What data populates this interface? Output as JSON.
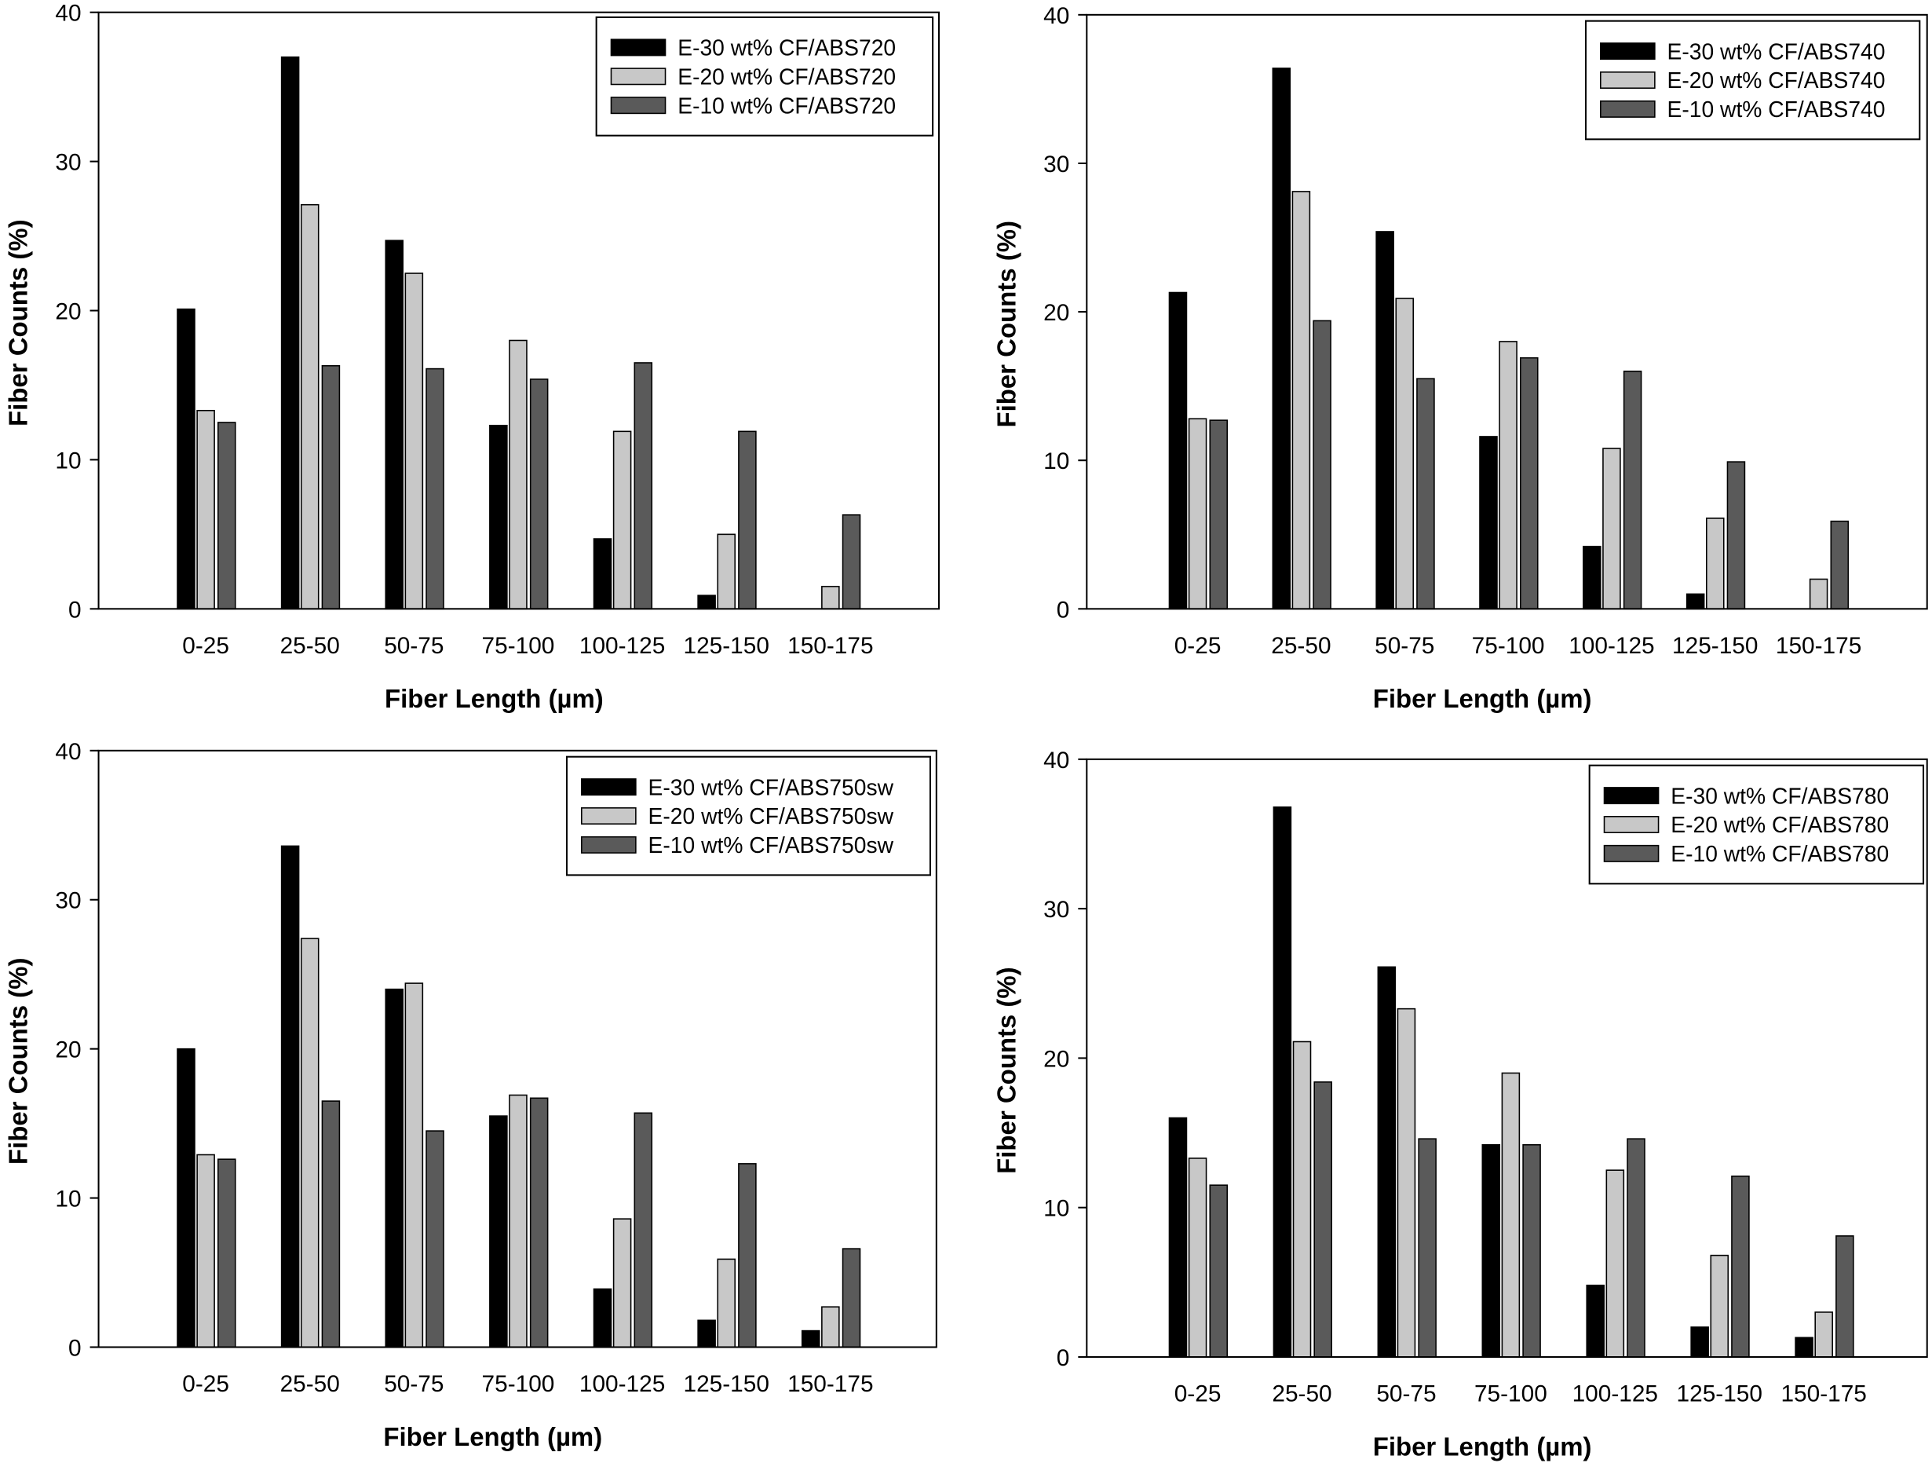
{
  "colors": {
    "E-30": "#000000",
    "E-20": "#c8c8c8",
    "E-10": "#5a5a5a"
  },
  "chart_data": [
    {
      "type": "bar",
      "xlabel": "Fiber Length (µm)",
      "ylabel": "Fiber Counts (%)",
      "ylim": [
        0,
        40
      ],
      "yticks": [
        "0",
        "10",
        "20",
        "30",
        "40"
      ],
      "legend_position": "top-right",
      "categories": [
        "0-25",
        "25-50",
        "50-75",
        "75-100",
        "100-125",
        "125-150",
        "150-175"
      ],
      "series": [
        {
          "name": "E-30 wt% CF/ABS720",
          "key": "E-30",
          "values": [
            20.1,
            37.0,
            24.7,
            12.3,
            4.7,
            0.9,
            0
          ]
        },
        {
          "name": "E-20 wt% CF/ABS720",
          "key": "E-20",
          "values": [
            13.3,
            27.1,
            22.5,
            18.0,
            11.9,
            5.0,
            1.5
          ]
        },
        {
          "name": "E-10 wt% CF/ABS720",
          "key": "E-10",
          "values": [
            12.5,
            16.3,
            16.1,
            15.4,
            16.5,
            11.9,
            6.3
          ]
        }
      ]
    },
    {
      "type": "bar",
      "xlabel": "Fiber Length (µm)",
      "ylabel": "Fiber Counts (%)",
      "ylim": [
        0,
        40
      ],
      "yticks": [
        "0",
        "10",
        "20",
        "30",
        "40"
      ],
      "legend_position": "top-right",
      "categories": [
        "0-25",
        "25-50",
        "50-75",
        "75-100",
        "100-125",
        "125-150",
        "150-175"
      ],
      "series": [
        {
          "name": "E-30 wt% CF/ABS740",
          "key": "E-30",
          "values": [
            21.3,
            36.4,
            25.4,
            11.6,
            4.2,
            1.0,
            0
          ]
        },
        {
          "name": "E-20 wt% CF/ABS740",
          "key": "E-20",
          "values": [
            12.8,
            28.1,
            20.9,
            18.0,
            10.8,
            6.1,
            2.0
          ]
        },
        {
          "name": "E-10 wt% CF/ABS740",
          "key": "E-10",
          "values": [
            12.7,
            19.4,
            15.5,
            16.9,
            16.0,
            9.9,
            5.9
          ]
        }
      ]
    },
    {
      "type": "bar",
      "xlabel": "Fiber Length (µm)",
      "ylabel": "Fiber Counts (%)",
      "ylim": [
        0,
        40
      ],
      "yticks": [
        "0",
        "10",
        "20",
        "30",
        "40"
      ],
      "legend_position": "top-right",
      "categories": [
        "0-25",
        "25-50",
        "50-75",
        "75-100",
        "100-125",
        "125-150",
        "150-175"
      ],
      "series": [
        {
          "name": "E-30 wt% CF/ABS750sw",
          "key": "E-30",
          "values": [
            20.0,
            33.6,
            24.0,
            15.5,
            3.9,
            1.8,
            1.1
          ]
        },
        {
          "name": "E-20 wt% CF/ABS750sw",
          "key": "E-20",
          "values": [
            12.9,
            27.4,
            24.4,
            16.9,
            8.6,
            5.9,
            2.7
          ]
        },
        {
          "name": "E-10 wt% CF/ABS750sw",
          "key": "E-10",
          "values": [
            12.6,
            16.5,
            14.5,
            16.7,
            15.7,
            12.3,
            6.6
          ]
        }
      ]
    },
    {
      "type": "bar",
      "xlabel": "Fiber Length (µm)",
      "ylabel": "Fiber Counts (%)",
      "ylim": [
        0,
        40
      ],
      "yticks": [
        "0",
        "10",
        "20",
        "30",
        "40"
      ],
      "legend_position": "top-right",
      "categories": [
        "0-25",
        "25-50",
        "50-75",
        "75-100",
        "100-125",
        "125-150",
        "150-175"
      ],
      "series": [
        {
          "name": "E-30 wt% CF/ABS780",
          "key": "E-30",
          "values": [
            16.0,
            36.8,
            26.1,
            14.2,
            4.8,
            2.0,
            1.3
          ]
        },
        {
          "name": "E-20 wt% CF/ABS780",
          "key": "E-20",
          "values": [
            13.3,
            21.1,
            23.3,
            19.0,
            12.5,
            6.8,
            3.0
          ]
        },
        {
          "name": "E-10 wt% CF/ABS780",
          "key": "E-10",
          "values": [
            11.5,
            18.4,
            14.6,
            14.2,
            14.6,
            12.1,
            8.1
          ]
        }
      ]
    }
  ]
}
